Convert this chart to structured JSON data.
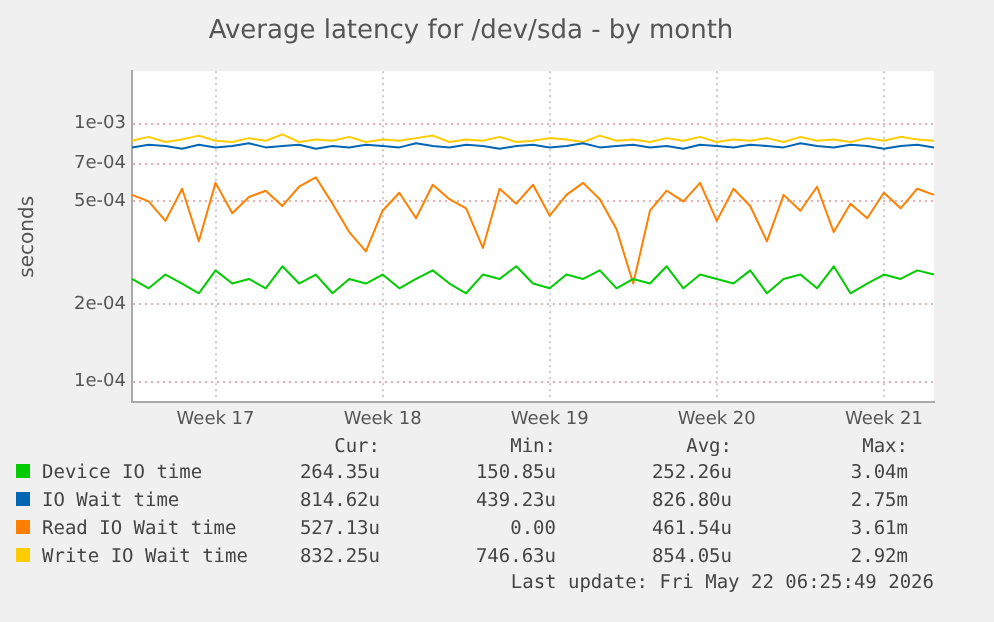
{
  "chart_data": {
    "type": "line",
    "title": "Average latency for /dev/sda - by month",
    "ylabel": "seconds",
    "categories": [
      null,
      null,
      null,
      null,
      null,
      "Week 17",
      null,
      null,
      null,
      null,
      null,
      null,
      null,
      null,
      null,
      "Week 18",
      null,
      null,
      null,
      null,
      null,
      null,
      null,
      null,
      null,
      "Week 19",
      null,
      null,
      null,
      null,
      null,
      null,
      null,
      null,
      null,
      "Week 20",
      null,
      null,
      null,
      null,
      null,
      null,
      null,
      null,
      null,
      "Week 21",
      null,
      null,
      null
    ],
    "ylim": [
      8.3e-05,
      0.0016
    ],
    "yticks": [
      {
        "value": 0.0001,
        "label": "1e-04"
      },
      {
        "value": 0.0002,
        "label": "2e-04"
      },
      {
        "value": 0.0005,
        "label": "5e-04"
      },
      {
        "value": 0.0007,
        "label": "7e-04"
      },
      {
        "value": 0.001,
        "label": "1e-03"
      }
    ],
    "log": true,
    "grid": true,
    "legend": "bottom",
    "marker": "none",
    "line_style": "solid",
    "series": [
      {
        "name": "Device IO time",
        "color": "#00cc00",
        "values": [
          0.00025,
          0.00023,
          0.00026,
          0.00024,
          0.00022,
          0.00027,
          0.00024,
          0.00025,
          0.00023,
          0.00028,
          0.00024,
          0.00026,
          0.00022,
          0.00025,
          0.00024,
          0.00026,
          0.00023,
          0.00025,
          0.00027,
          0.00024,
          0.00022,
          0.00026,
          0.00025,
          0.00028,
          0.00024,
          0.00023,
          0.00026,
          0.00025,
          0.00027,
          0.00023,
          0.00025,
          0.00024,
          0.00028,
          0.00023,
          0.00026,
          0.00025,
          0.00024,
          0.00027,
          0.00022,
          0.00025,
          0.00026,
          0.00023,
          0.00028,
          0.00022,
          0.00024,
          0.00026,
          0.00025,
          0.00027,
          0.00026
        ]
      },
      {
        "name": "IO Wait time",
        "color": "#0066b3",
        "values": [
          0.00081,
          0.00083,
          0.00082,
          0.0008,
          0.00083,
          0.00081,
          0.00082,
          0.00084,
          0.00081,
          0.00082,
          0.00083,
          0.0008,
          0.00082,
          0.00081,
          0.00083,
          0.00082,
          0.00081,
          0.00084,
          0.00082,
          0.00081,
          0.00083,
          0.00082,
          0.0008,
          0.00082,
          0.00083,
          0.00081,
          0.00082,
          0.00084,
          0.00081,
          0.00082,
          0.00083,
          0.00081,
          0.00082,
          0.0008,
          0.00083,
          0.00082,
          0.00081,
          0.00083,
          0.00082,
          0.00081,
          0.00084,
          0.00082,
          0.00081,
          0.00083,
          0.00082,
          0.0008,
          0.00082,
          0.00083,
          0.00081
        ]
      },
      {
        "name": "Read IO Wait time",
        "color": "#ff8000",
        "values": [
          0.00053,
          0.0005,
          0.00042,
          0.00056,
          0.00035,
          0.00059,
          0.00045,
          0.00052,
          0.00055,
          0.00048,
          0.00057,
          0.00062,
          0.00049,
          0.00038,
          0.00032,
          0.00046,
          0.00054,
          0.00043,
          0.00058,
          0.00051,
          0.00047,
          0.00033,
          0.00056,
          0.00049,
          0.00058,
          0.00044,
          0.00053,
          0.00059,
          0.00051,
          0.00039,
          0.00024,
          0.00046,
          0.00055,
          0.0005,
          0.00059,
          0.00042,
          0.00056,
          0.00048,
          0.00035,
          0.00053,
          0.00046,
          0.00057,
          0.00038,
          0.00049,
          0.00043,
          0.00054,
          0.00047,
          0.00056,
          0.00053
        ]
      },
      {
        "name": "Write IO Wait time",
        "color": "#ffcc00",
        "values": [
          0.00086,
          0.00089,
          0.00085,
          0.00087,
          0.0009,
          0.00086,
          0.00085,
          0.00088,
          0.00086,
          0.00091,
          0.00085,
          0.00087,
          0.00086,
          0.00089,
          0.00085,
          0.00087,
          0.00086,
          0.00088,
          0.0009,
          0.00085,
          0.00087,
          0.00086,
          0.00089,
          0.00085,
          0.00086,
          0.00088,
          0.00087,
          0.00085,
          0.0009,
          0.00086,
          0.00087,
          0.00085,
          0.00088,
          0.00086,
          0.00089,
          0.00085,
          0.00087,
          0.00086,
          0.00088,
          0.00085,
          0.00089,
          0.00086,
          0.00087,
          0.00085,
          0.00088,
          0.00086,
          0.00089,
          0.00087,
          0.00086
        ]
      }
    ],
    "annotations": [
      "Cur:",
      "Min:",
      "Avg:",
      "Max:",
      "264.35u",
      "150.85u",
      "252.26u",
      "3.04m",
      "814.62u",
      "439.23u",
      "826.80u",
      "2.75m",
      "527.13u",
      "0.00",
      "461.54u",
      "3.61m",
      "832.25u",
      "746.63u",
      "854.05u",
      "2.92m",
      "Last update: Fri May 22 06:25:49 2026"
    ]
  }
}
